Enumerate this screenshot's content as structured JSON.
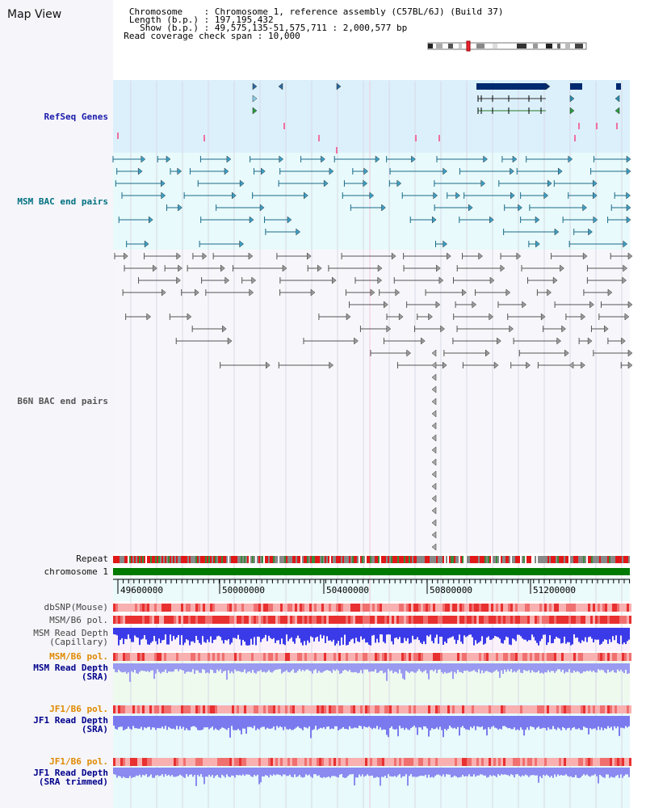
{
  "header": {
    "title": "Map View",
    "info_lines": [
      "   Chromosome    : Chromosome 1, reference assembly (C57BL/6J) (Build 37)",
      "   Length (b.p.) : 197,195,432",
      "     Show (b.p.) : 49,575,135-51,575,711 : 2,000,577 bp",
      "  Read coverage check span : 10,000"
    ]
  },
  "tracks": {
    "refseq": "RefSeq Genes",
    "msm_bac": "MSM BAC end pairs",
    "b6n_bac": "B6N BAC end pairs",
    "repeat": "Repeat",
    "chromosome": "chromosome 1",
    "dbsnp": "dbSNP(Mouse)",
    "msm_b6_pol_1": "MSM/B6 pol.",
    "msm_depth_cap": "MSM Read Depth\n(Capillary)",
    "msm_b6_pol_2": "MSM/B6 pol.",
    "msm_depth_sra": "MSM Read Depth\n(SRA)",
    "jf1_b6_pol_1": "JF1/B6 pol.",
    "jf1_depth_sra": "JF1 Read Depth\n(SRA)",
    "jf1_b6_pol_2": "JF1/B6 pol.",
    "jf1_depth_trim": "JF1 Read Depth\n(SRA trimmed)"
  },
  "ruler": {
    "ticks": [
      "49600000",
      "50000000",
      "50400000",
      "50800000",
      "51200000"
    ]
  },
  "colors": {
    "refseq_label": "#1a1aaa",
    "msm_label": "#007080",
    "b6n_label": "#555555",
    "pol_label": "#e08a00",
    "sra_label": "#00008b",
    "gene_dark": "#002a70",
    "chromosome_bar": "#007a00"
  }
}
